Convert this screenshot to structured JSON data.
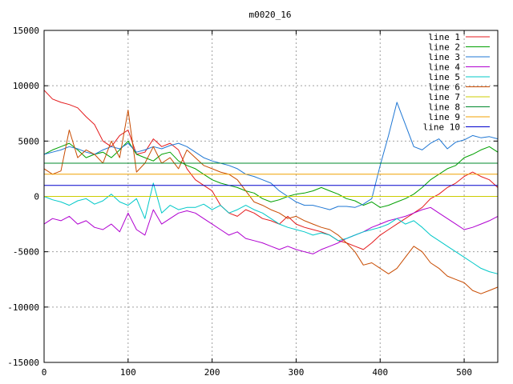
{
  "chart_data": {
    "type": "line",
    "title": "m0020_16",
    "xlabel": "",
    "ylabel": "",
    "xlim": [
      0,
      540
    ],
    "ylim": [
      -15000,
      15000
    ],
    "xticks": [
      0,
      100,
      200,
      300,
      400,
      500
    ],
    "yticks": [
      -15000,
      -10000,
      -5000,
      0,
      5000,
      10000,
      15000
    ],
    "grid": true,
    "legend_position": "top-right",
    "series": [
      {
        "name": "line 1",
        "color": "#e41a1c",
        "x": [
          0,
          10,
          20,
          30,
          40,
          50,
          60,
          70,
          80,
          90,
          100,
          110,
          120,
          130,
          140,
          150,
          160,
          170,
          180,
          190,
          200,
          210,
          220,
          230,
          240,
          250,
          260,
          270,
          280,
          290,
          300,
          310,
          320,
          330,
          340,
          350,
          360,
          370,
          380,
          390,
          400,
          410,
          420,
          430,
          440,
          450,
          460,
          470,
          480,
          490,
          500,
          510,
          520,
          530,
          540
        ],
        "y": [
          9600,
          8800,
          8500,
          8300,
          8000,
          7200,
          6500,
          5000,
          4500,
          5500,
          6000,
          3800,
          4000,
          5200,
          4500,
          4800,
          4200,
          2500,
          1500,
          1000,
          500,
          -800,
          -1500,
          -1800,
          -1200,
          -1500,
          -2000,
          -2200,
          -2500,
          -1800,
          -2500,
          -2800,
          -3000,
          -3200,
          -3500,
          -4000,
          -4200,
          -4500,
          -4800,
          -4200,
          -3500,
          -3000,
          -2500,
          -2000,
          -1500,
          -1000,
          -200,
          200,
          800,
          1200,
          1800,
          2200,
          1800,
          1500,
          800
        ]
      },
      {
        "name": "line 2",
        "color": "#00a000",
        "x": [
          0,
          10,
          20,
          30,
          40,
          50,
          60,
          70,
          80,
          90,
          100,
          110,
          120,
          130,
          140,
          150,
          160,
          170,
          180,
          190,
          200,
          210,
          220,
          230,
          240,
          250,
          260,
          270,
          280,
          290,
          300,
          310,
          320,
          330,
          340,
          350,
          360,
          370,
          380,
          390,
          400,
          410,
          420,
          430,
          440,
          450,
          460,
          470,
          480,
          490,
          500,
          510,
          520,
          530,
          540
        ],
        "y": [
          3800,
          4200,
          4500,
          4800,
          4200,
          3500,
          3800,
          4000,
          3500,
          4200,
          5000,
          3800,
          3500,
          3200,
          3800,
          4000,
          3200,
          2800,
          2500,
          2000,
          1500,
          1200,
          1000,
          800,
          500,
          300,
          -200,
          -500,
          -300,
          0,
          200,
          300,
          500,
          800,
          500,
          200,
          -200,
          -400,
          -800,
          -500,
          -1000,
          -800,
          -500,
          -200,
          200,
          800,
          1500,
          2000,
          2500,
          2800,
          3500,
          3800,
          4200,
          4500,
          4000
        ]
      },
      {
        "name": "line 3",
        "color": "#1f77d4",
        "x": [
          0,
          10,
          20,
          30,
          40,
          50,
          60,
          70,
          80,
          90,
          100,
          110,
          120,
          130,
          140,
          150,
          160,
          170,
          180,
          190,
          200,
          210,
          220,
          230,
          240,
          250,
          260,
          270,
          280,
          290,
          300,
          310,
          320,
          330,
          340,
          350,
          360,
          370,
          380,
          390,
          400,
          410,
          420,
          430,
          440,
          450,
          460,
          470,
          480,
          490,
          500,
          510,
          520,
          530,
          540
        ],
        "y": [
          3800,
          4000,
          4200,
          4500,
          4300,
          4000,
          3800,
          4200,
          4500,
          4300,
          4800,
          4000,
          4200,
          4500,
          4300,
          4600,
          4800,
          4500,
          4000,
          3500,
          3200,
          3000,
          2800,
          2500,
          2000,
          1800,
          1500,
          1200,
          500,
          0,
          -500,
          -800,
          -800,
          -1000,
          -1200,
          -900,
          -900,
          -1000,
          -700,
          -200,
          2800,
          5500,
          8500,
          6500,
          4500,
          4200,
          4800,
          5200,
          4300,
          4900,
          5100,
          5500,
          5300,
          5400,
          5200
        ]
      },
      {
        "name": "line 4",
        "color": "#b000d0",
        "x": [
          0,
          10,
          20,
          30,
          40,
          50,
          60,
          70,
          80,
          90,
          100,
          110,
          120,
          130,
          140,
          150,
          160,
          170,
          180,
          190,
          200,
          210,
          220,
          230,
          240,
          250,
          260,
          270,
          280,
          290,
          300,
          310,
          320,
          330,
          340,
          350,
          360,
          370,
          380,
          390,
          400,
          410,
          420,
          430,
          440,
          450,
          460,
          470,
          480,
          490,
          500,
          510,
          520,
          530,
          540
        ],
        "y": [
          -2500,
          -2000,
          -2200,
          -1800,
          -2500,
          -2200,
          -2800,
          -3000,
          -2500,
          -3200,
          -1500,
          -3000,
          -3500,
          -1200,
          -2500,
          -2000,
          -1500,
          -1300,
          -1500,
          -2000,
          -2500,
          -3000,
          -3500,
          -3200,
          -3800,
          -4000,
          -4200,
          -4500,
          -4800,
          -4500,
          -4800,
          -5000,
          -5200,
          -4800,
          -4500,
          -4200,
          -3800,
          -3500,
          -3200,
          -2800,
          -2500,
          -2200,
          -2000,
          -1800,
          -1500,
          -1200,
          -1000,
          -1500,
          -2000,
          -2500,
          -3000,
          -2800,
          -2500,
          -2200,
          -1800
        ]
      },
      {
        "name": "line 5",
        "color": "#00c8c8",
        "x": [
          0,
          10,
          20,
          30,
          40,
          50,
          60,
          70,
          80,
          90,
          100,
          110,
          120,
          130,
          140,
          150,
          160,
          170,
          180,
          190,
          200,
          210,
          220,
          230,
          240,
          250,
          260,
          270,
          280,
          290,
          300,
          310,
          320,
          330,
          340,
          350,
          360,
          370,
          380,
          390,
          400,
          410,
          420,
          430,
          440,
          450,
          460,
          470,
          480,
          490,
          500,
          510,
          520,
          530,
          540
        ],
        "y": [
          0,
          -300,
          -500,
          -800,
          -400,
          -200,
          -700,
          -400,
          200,
          -500,
          -800,
          -200,
          -2000,
          1200,
          -1500,
          -800,
          -1200,
          -1000,
          -1000,
          -700,
          -1200,
          -800,
          -1500,
          -1200,
          -800,
          -1200,
          -1500,
          -2000,
          -2500,
          -2800,
          -3000,
          -3200,
          -3500,
          -3300,
          -3500,
          -4000,
          -3800,
          -3500,
          -3200,
          -3000,
          -2800,
          -2500,
          -2000,
          -2500,
          -2200,
          -2800,
          -3500,
          -4000,
          -4500,
          -5000,
          -5500,
          -6000,
          -6500,
          -6800,
          -7000
        ]
      },
      {
        "name": "line 6",
        "color": "#c84b00",
        "x": [
          0,
          10,
          20,
          30,
          40,
          50,
          60,
          70,
          80,
          90,
          100,
          110,
          120,
          130,
          140,
          150,
          160,
          170,
          180,
          190,
          200,
          210,
          220,
          230,
          240,
          250,
          260,
          270,
          280,
          290,
          300,
          310,
          320,
          330,
          340,
          350,
          360,
          370,
          380,
          390,
          400,
          410,
          420,
          430,
          440,
          450,
          460,
          470,
          480,
          490,
          500,
          510,
          520,
          530,
          540
        ],
        "y": [
          2500,
          2000,
          2300,
          6000,
          3500,
          4200,
          3800,
          3000,
          5000,
          3500,
          7800,
          2200,
          3000,
          4500,
          3000,
          3500,
          2500,
          4200,
          3500,
          2800,
          2500,
          2200,
          2000,
          1500,
          500,
          -500,
          -800,
          -1200,
          -1500,
          -2000,
          -1800,
          -2200,
          -2500,
          -2800,
          -3000,
          -3500,
          -4200,
          -5000,
          -6200,
          -6000,
          -6500,
          -7000,
          -6500,
          -5500,
          -4500,
          -5000,
          -6000,
          -6500,
          -7200,
          -7500,
          -7800,
          -8500,
          -8800,
          -8500,
          -8200
        ]
      },
      {
        "name": "line 7",
        "color": "#cccc00",
        "x": [
          0,
          540
        ],
        "y": [
          0,
          0
        ]
      },
      {
        "name": "line 8",
        "color": "#00882b",
        "x": [
          0,
          540
        ],
        "y": [
          3000,
          3000
        ]
      },
      {
        "name": "line 9",
        "color": "#f0a000",
        "x": [
          0,
          540
        ],
        "y": [
          2000,
          2000
        ]
      },
      {
        "name": "line 10",
        "color": "#0000cc",
        "x": [
          0,
          540
        ],
        "y": [
          1000,
          1000
        ]
      }
    ]
  }
}
